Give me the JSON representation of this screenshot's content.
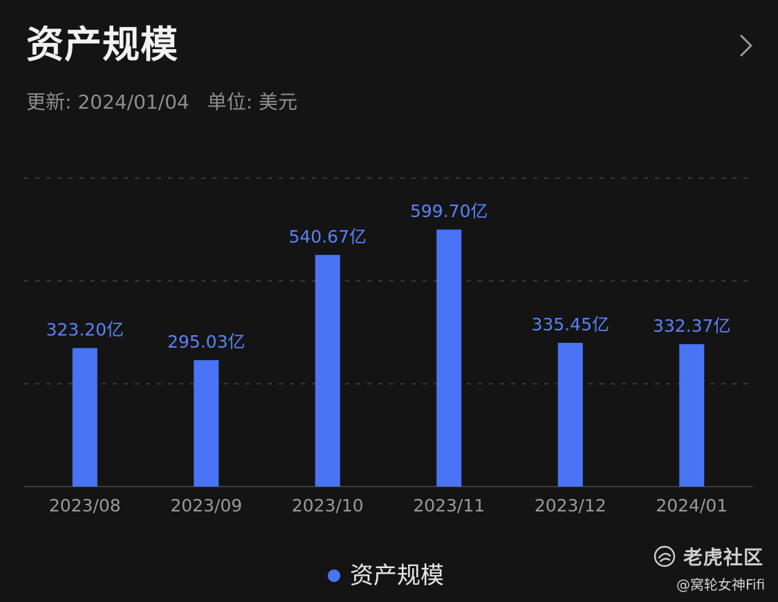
{
  "header": {
    "title": "资产规模",
    "updated": "更新: 2024/01/04",
    "unit": "单位: 美元"
  },
  "colors": {
    "background": "#141414",
    "bar": "#4a74f6",
    "bar_label": "#5a82f7",
    "tick_label": "#9a9a9a",
    "grid": "#3a3a3a"
  },
  "legend": {
    "label": "资产规模"
  },
  "watermark": {
    "brand": "老虎社区",
    "user": "@窝轮女神Fifi"
  },
  "chart_data": {
    "type": "bar",
    "categories": [
      "2023/08",
      "2023/09",
      "2023/10",
      "2023/11",
      "2023/12",
      "2024/01"
    ],
    "series": [
      {
        "name": "资产规模",
        "values": [
          323.2,
          295.03,
          540.67,
          599.7,
          335.45,
          332.37
        ],
        "labels": [
          "323.20亿",
          "295.03亿",
          "540.67亿",
          "599.70亿",
          "335.45亿",
          "332.37亿"
        ]
      }
    ],
    "ylim": [
      0,
      720
    ],
    "grid": true,
    "grid_style": "dashed",
    "legend_position": "bottom-center"
  }
}
